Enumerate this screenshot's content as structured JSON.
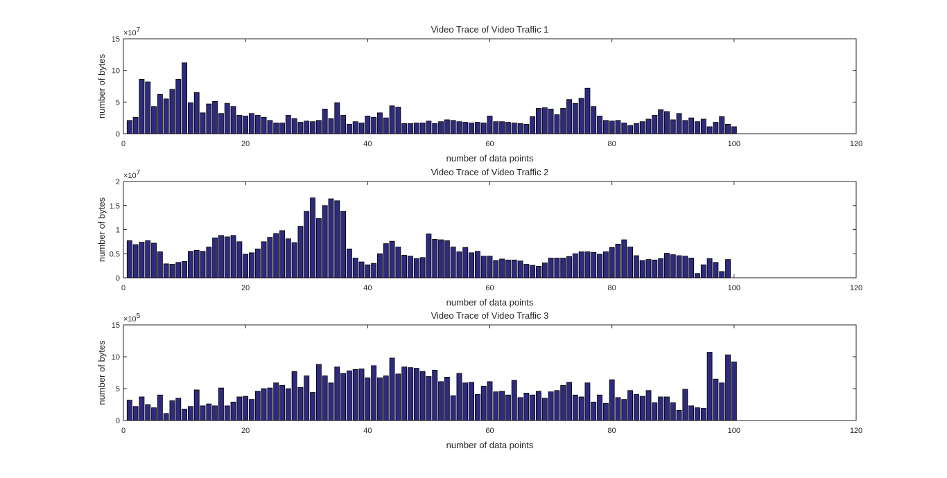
{
  "figure": {
    "background": "#ffffff",
    "bar_fill": "#2e2a7e",
    "bar_edge": "#000000",
    "axis_color": "#262626"
  },
  "chart_data": [
    {
      "type": "bar",
      "title": "Video Trace of Video Traffic 1",
      "xlabel": "number of data points",
      "ylabel": "number of bytes",
      "exponent_label": "7",
      "multiplier": 10000000,
      "xlim": [
        0,
        120
      ],
      "ylim": [
        0,
        15
      ],
      "xticks": [
        0,
        20,
        40,
        60,
        80,
        100,
        120
      ],
      "yticks": [
        0,
        5,
        10,
        15
      ],
      "x": [
        1,
        2,
        3,
        4,
        5,
        6,
        7,
        8,
        9,
        10,
        11,
        12,
        13,
        14,
        15,
        16,
        17,
        18,
        19,
        20,
        21,
        22,
        23,
        24,
        25,
        26,
        27,
        28,
        29,
        30,
        31,
        32,
        33,
        34,
        35,
        36,
        37,
        38,
        39,
        40,
        41,
        42,
        43,
        44,
        45,
        46,
        47,
        48,
        49,
        50,
        51,
        52,
        53,
        54,
        55,
        56,
        57,
        58,
        59,
        60,
        61,
        62,
        63,
        64,
        65,
        66,
        67,
        68,
        69,
        70,
        71,
        72,
        73,
        74,
        75,
        76,
        77,
        78,
        79,
        80,
        81,
        82,
        83,
        84,
        85,
        86,
        87,
        88,
        89,
        90,
        91,
        92,
        93,
        94,
        95,
        96,
        97,
        98,
        99,
        100
      ],
      "values": [
        2.1,
        2.6,
        8.6,
        8.2,
        4.3,
        6.2,
        5.5,
        7.0,
        8.6,
        11.2,
        4.9,
        6.5,
        3.3,
        4.7,
        5.1,
        3.2,
        4.8,
        4.3,
        2.9,
        2.8,
        3.2,
        2.9,
        2.6,
        2.1,
        1.7,
        1.7,
        2.9,
        2.4,
        1.8,
        2.0,
        1.9,
        2.1,
        3.9,
        2.4,
        4.9,
        2.9,
        1.5,
        1.9,
        1.7,
        2.8,
        2.6,
        3.3,
        2.5,
        4.4,
        4.2,
        1.6,
        1.6,
        1.7,
        1.7,
        2.0,
        1.6,
        1.9,
        2.2,
        2.1,
        1.9,
        1.8,
        1.7,
        1.8,
        1.7,
        2.8,
        1.9,
        1.9,
        1.8,
        1.7,
        1.6,
        1.5,
        2.7,
        4.0,
        4.1,
        3.9,
        3.0,
        4.0,
        5.4,
        4.8,
        5.6,
        7.2,
        4.3,
        2.8,
        2.1,
        2.0,
        2.1,
        1.7,
        1.3,
        1.6,
        1.9,
        2.3,
        2.9,
        3.8,
        3.5,
        2.2,
        3.2,
        2.1,
        2.5,
        1.9,
        2.3,
        1.1,
        1.8,
        2.7,
        1.5,
        1.1
      ]
    },
    {
      "type": "bar",
      "title": "Video Trace of Video Traffic 2",
      "xlabel": "number of data points",
      "ylabel": "number of bytes",
      "exponent_label": "7",
      "multiplier": 10000000,
      "xlim": [
        0,
        120
      ],
      "ylim": [
        0,
        2
      ],
      "xticks": [
        0,
        20,
        40,
        60,
        80,
        100,
        120
      ],
      "yticks": [
        0,
        0.5,
        1,
        1.5,
        2
      ],
      "ytick_labels": [
        "0",
        "0.5",
        "1",
        "1.5",
        "2"
      ],
      "x": [
        1,
        2,
        3,
        4,
        5,
        6,
        7,
        8,
        9,
        10,
        11,
        12,
        13,
        14,
        15,
        16,
        17,
        18,
        19,
        20,
        21,
        22,
        23,
        24,
        25,
        26,
        27,
        28,
        29,
        30,
        31,
        32,
        33,
        34,
        35,
        36,
        37,
        38,
        39,
        40,
        41,
        42,
        43,
        44,
        45,
        46,
        47,
        48,
        49,
        50,
        51,
        52,
        53,
        54,
        55,
        56,
        57,
        58,
        59,
        60,
        61,
        62,
        63,
        64,
        65,
        66,
        67,
        68,
        69,
        70,
        71,
        72,
        73,
        74,
        75,
        76,
        77,
        78,
        79,
        80,
        81,
        82,
        83,
        84,
        85,
        86,
        87,
        88,
        89,
        90,
        91,
        92,
        93,
        94,
        95,
        96,
        97,
        98,
        99,
        100
      ],
      "values": [
        0.77,
        0.69,
        0.74,
        0.77,
        0.72,
        0.54,
        0.29,
        0.28,
        0.32,
        0.34,
        0.55,
        0.57,
        0.55,
        0.64,
        0.83,
        0.88,
        0.85,
        0.88,
        0.75,
        0.49,
        0.52,
        0.6,
        0.75,
        0.84,
        0.92,
        0.98,
        0.81,
        0.73,
        1.07,
        1.38,
        1.66,
        1.23,
        1.5,
        1.64,
        1.6,
        1.38,
        0.6,
        0.41,
        0.33,
        0.27,
        0.3,
        0.5,
        0.71,
        0.76,
        0.64,
        0.47,
        0.45,
        0.4,
        0.42,
        0.91,
        0.8,
        0.79,
        0.77,
        0.64,
        0.54,
        0.63,
        0.52,
        0.55,
        0.45,
        0.45,
        0.36,
        0.39,
        0.37,
        0.37,
        0.35,
        0.28,
        0.26,
        0.24,
        0.31,
        0.41,
        0.41,
        0.41,
        0.44,
        0.5,
        0.54,
        0.54,
        0.53,
        0.49,
        0.54,
        0.63,
        0.7,
        0.79,
        0.64,
        0.46,
        0.36,
        0.38,
        0.37,
        0.4,
        0.51,
        0.48,
        0.46,
        0.45,
        0.41,
        0.09,
        0.27,
        0.4,
        0.32,
        0.13,
        0.38,
        0.0
      ]
    },
    {
      "type": "bar",
      "title": "Video Trace of Video Traffic 3",
      "xlabel": "number of data points",
      "ylabel": "number of bytes",
      "exponent_label": "5",
      "multiplier": 100000,
      "xlim": [
        0,
        120
      ],
      "ylim": [
        0,
        15
      ],
      "xticks": [
        0,
        20,
        40,
        60,
        80,
        100,
        120
      ],
      "yticks": [
        0,
        5,
        10,
        15
      ],
      "x": [
        1,
        2,
        3,
        4,
        5,
        6,
        7,
        8,
        9,
        10,
        11,
        12,
        13,
        14,
        15,
        16,
        17,
        18,
        19,
        20,
        21,
        22,
        23,
        24,
        25,
        26,
        27,
        28,
        29,
        30,
        31,
        32,
        33,
        34,
        35,
        36,
        37,
        38,
        39,
        40,
        41,
        42,
        43,
        44,
        45,
        46,
        47,
        48,
        49,
        50,
        51,
        52,
        53,
        54,
        55,
        56,
        57,
        58,
        59,
        60,
        61,
        62,
        63,
        64,
        65,
        66,
        67,
        68,
        69,
        70,
        71,
        72,
        73,
        74,
        75,
        76,
        77,
        78,
        79,
        80,
        81,
        82,
        83,
        84,
        85,
        86,
        87,
        88,
        89,
        90,
        91,
        92,
        93,
        94,
        95,
        96,
        97,
        98,
        99,
        100
      ],
      "values": [
        3.2,
        2.2,
        3.7,
        2.5,
        2.0,
        4.0,
        1.1,
        3.1,
        3.5,
        1.8,
        2.2,
        4.8,
        2.3,
        2.6,
        2.3,
        5.1,
        2.3,
        2.9,
        3.7,
        3.8,
        3.3,
        4.6,
        5.0,
        5.1,
        5.9,
        5.5,
        5.0,
        7.7,
        5.2,
        7.0,
        4.4,
        8.8,
        7.0,
        5.9,
        8.4,
        7.4,
        7.8,
        8.0,
        8.1,
        6.7,
        8.6,
        6.7,
        7.0,
        9.8,
        7.3,
        8.4,
        8.3,
        8.2,
        7.7,
        6.9,
        7.9,
        6.1,
        6.8,
        3.9,
        7.4,
        5.9,
        6.0,
        4.1,
        5.4,
        6.1,
        4.5,
        4.6,
        4.0,
        6.3,
        3.6,
        4.3,
        4.0,
        4.6,
        3.5,
        4.5,
        4.7,
        5.5,
        6.0,
        4.0,
        3.7,
        5.9,
        2.9,
        4.0,
        2.7,
        6.4,
        3.6,
        3.3,
        4.7,
        4.1,
        3.8,
        4.7,
        2.8,
        3.7,
        3.7,
        2.8,
        1.6,
        4.9,
        2.3,
        2.0,
        1.9,
        10.7,
        6.5,
        5.9,
        10.3,
        9.2
      ]
    }
  ]
}
